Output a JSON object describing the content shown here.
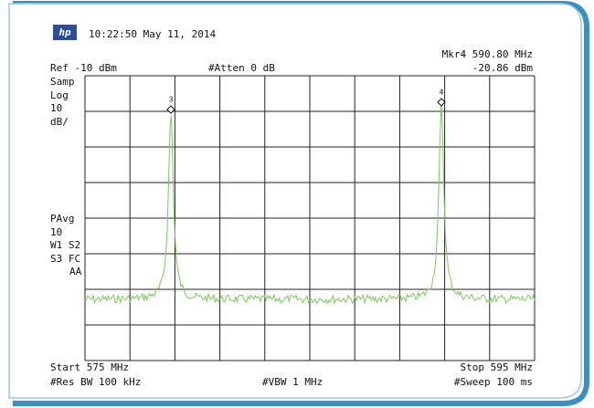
{
  "header": {
    "logo": "hp",
    "timestamp": "10:22:50  May 11, 2014",
    "marker_readout": "Mkr4  590.80 MHz",
    "marker_level": "-20.86 dBm"
  },
  "settings": {
    "reference": "Ref -10 dBm",
    "attenuation": "#Atten 0 dB"
  },
  "left_labels": {
    "top": [
      "Samp",
      "Log",
      "10",
      "dB/"
    ],
    "bottom": [
      "PAvg",
      "10",
      "W1  S2",
      "S3  FC",
      "AA"
    ]
  },
  "markers": [
    "3",
    "4"
  ],
  "footer": {
    "start": "Start 575 MHz",
    "stop": "Stop 595 MHz",
    "rbw": "#Res BW 100 kHz",
    "vbw": "#VBW 1 MHz",
    "sweep": "#Sweep 100 ms"
  }
}
